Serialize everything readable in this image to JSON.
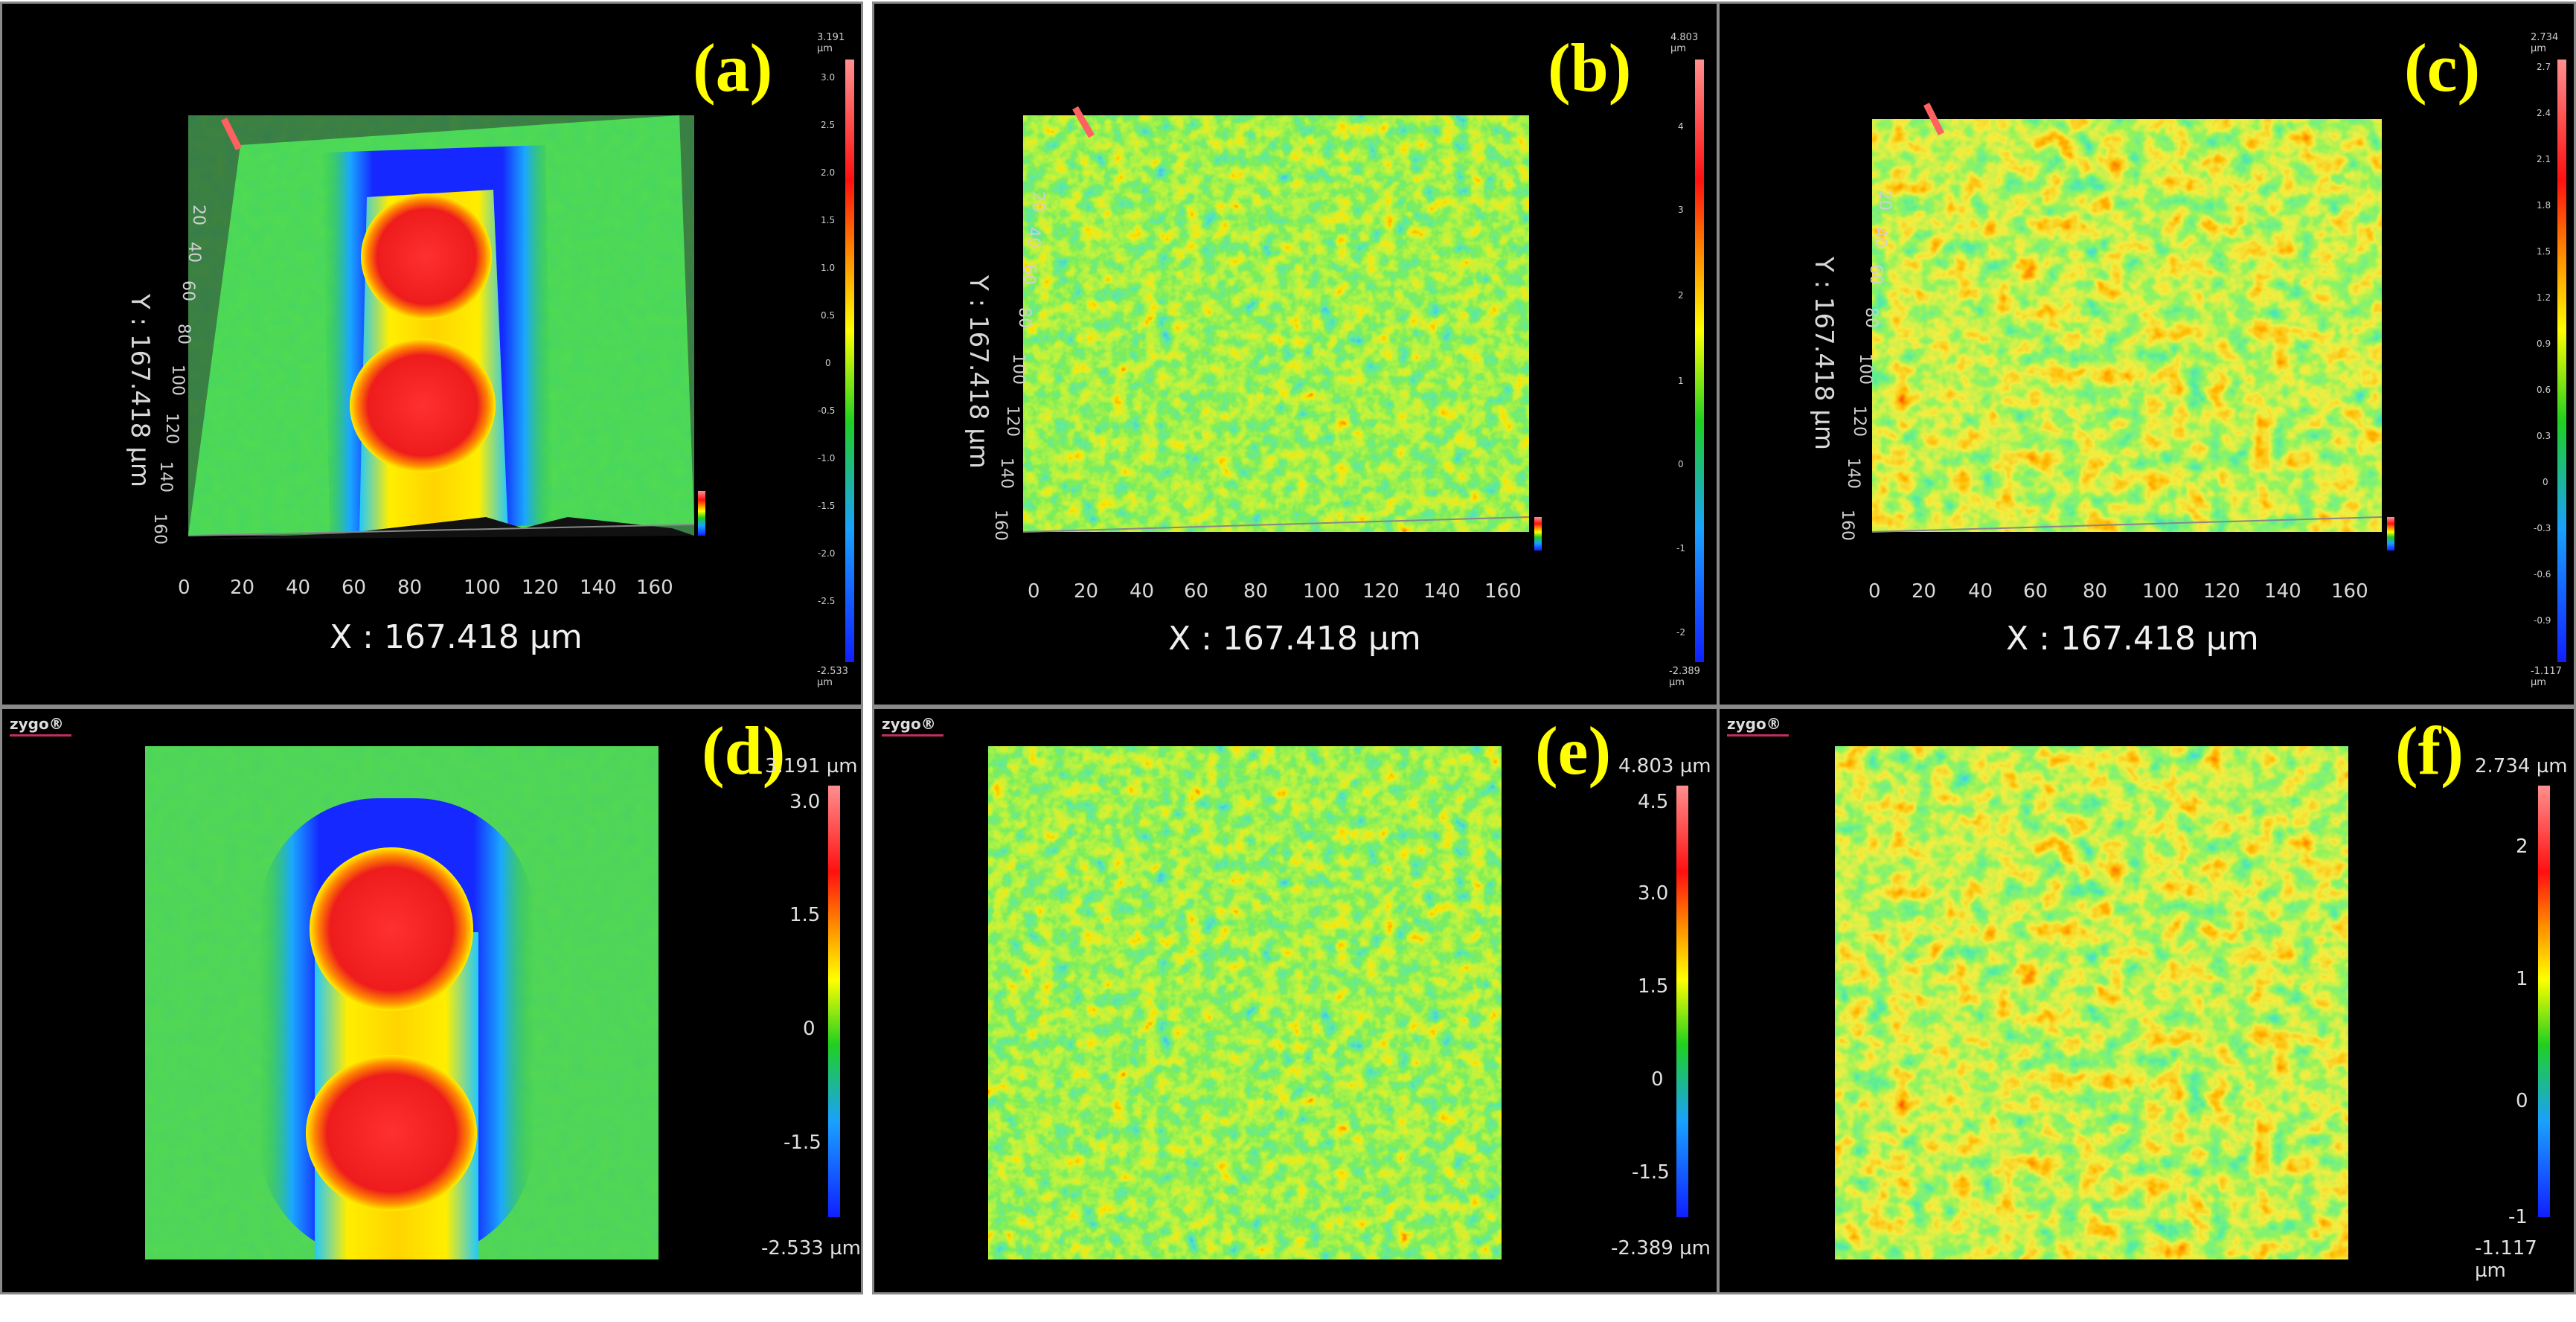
{
  "figure": {
    "logo_text": "zygo®",
    "x_axis_label": "X : 167.418 µm",
    "y_axis_label": "Y : 167.418 µm",
    "x_ticks": [
      "0",
      "20",
      "40",
      "60",
      "80",
      "100",
      "120",
      "140",
      "160"
    ],
    "y_ticks": [
      "20",
      "40",
      "60",
      "80",
      "100",
      "120",
      "140",
      "160"
    ],
    "panels": [
      {
        "id": "a",
        "label": "(a)",
        "view": "3d",
        "cb_max": "3.191 µm",
        "cb_min": "-2.533 µm",
        "cb_ticks": [
          "3.0",
          "2.5",
          "2.0",
          "1.5",
          "1.0",
          "0.5",
          "0",
          "-0.5",
          "-1.0",
          "-1.5",
          "-2.0",
          "-2.5"
        ]
      },
      {
        "id": "b",
        "label": "(b)",
        "view": "3d",
        "cb_max": "4.803 µm",
        "cb_min": "-2.389 µm",
        "cb_ticks": [
          "4",
          "3",
          "2",
          "1",
          "0",
          "-1",
          "-2"
        ]
      },
      {
        "id": "c",
        "label": "(c)",
        "view": "3d",
        "cb_max": "2.734 µm",
        "cb_min": "-1.117 µm",
        "cb_ticks": [
          "2.7",
          "2.4",
          "2.1",
          "1.8",
          "1.5",
          "1.2",
          "0.9",
          "0.6",
          "0.3",
          "0",
          "-0.3",
          "-0.6",
          "-0.9"
        ]
      },
      {
        "id": "d",
        "label": "(d)",
        "view": "2d",
        "cb_max": "3.191 µm",
        "cb_min": "-2.533 µm",
        "cb_ticks": [
          "3.0",
          "1.5",
          "0",
          "-1.5"
        ]
      },
      {
        "id": "e",
        "label": "(e)",
        "view": "2d",
        "cb_max": "4.803 µm",
        "cb_min": "-2.389 µm",
        "cb_ticks": [
          "4.5",
          "3.0",
          "1.5",
          "0",
          "-1.5"
        ]
      },
      {
        "id": "f",
        "label": "(f)",
        "view": "2d",
        "cb_max": "2.734 µm",
        "cb_min": "-1.117 µm",
        "cb_ticks": [
          "2",
          "1",
          "0",
          "-1"
        ]
      }
    ]
  }
}
